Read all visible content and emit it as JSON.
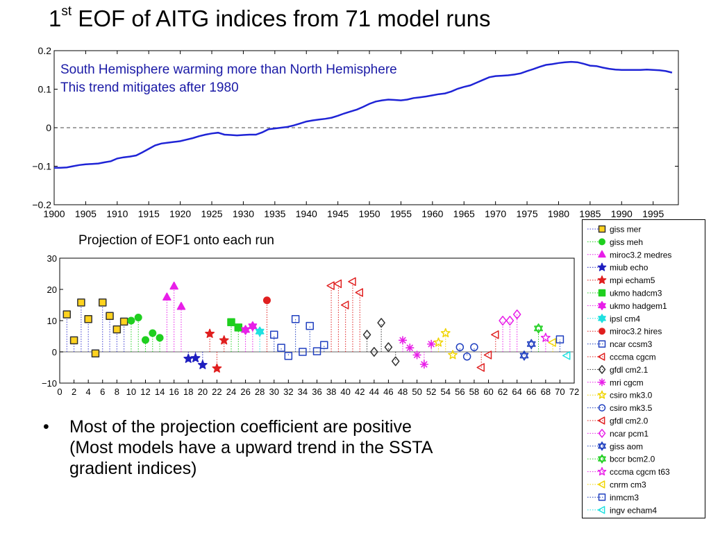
{
  "title": {
    "prefix": "1",
    "superscript": "st",
    "rest": " EOF of AITG indices from 71 model runs"
  },
  "top_annotation": [
    "South Hemisphere warming more than North Hemisphere",
    "This trend mitigates after 1980"
  ],
  "bottom_title": "Projection of EOF1 onto each run",
  "bullet": {
    "mark": "•",
    "line1": "Most of the projection coefficient are positive",
    "line2": "(Most models have a upward trend in the SSTA",
    "line3": "gradient indices)"
  },
  "colors": {
    "eof_line": "#1f24d6",
    "annotation": "#1a1aa6"
  },
  "chart_data": [
    {
      "type": "line",
      "title": "",
      "xlabel": "",
      "ylabel": "",
      "xlim": [
        1900,
        1999
      ],
      "ylim": [
        -0.2,
        0.2
      ],
      "x_ticks": [
        1900,
        1905,
        1910,
        1915,
        1920,
        1925,
        1930,
        1935,
        1940,
        1945,
        1950,
        1955,
        1960,
        1965,
        1970,
        1975,
        1980,
        1985,
        1990,
        1995
      ],
      "y_ticks": [
        0.2,
        0.1,
        0,
        -0.1,
        -0.2
      ],
      "y_tick_labels": [
        "0.2",
        "0.1",
        "0",
        "−0.1",
        "−0.2"
      ],
      "reference_line": 0,
      "series": [
        {
          "x": [
            1900,
            1901,
            1902,
            1903,
            1904,
            1905,
            1906,
            1907,
            1908,
            1909,
            1910,
            1911,
            1912,
            1913,
            1914,
            1915,
            1916,
            1917,
            1918,
            1919,
            1920,
            1921,
            1922,
            1923,
            1924,
            1925,
            1926,
            1927,
            1928,
            1929,
            1930,
            1931,
            1932,
            1933,
            1934,
            1935,
            1936,
            1937,
            1938,
            1939,
            1940,
            1941,
            1942,
            1943,
            1944,
            1945,
            1946,
            1947,
            1948,
            1949,
            1950,
            1951,
            1952,
            1953,
            1954,
            1955,
            1956,
            1957,
            1958,
            1959,
            1960,
            1961,
            1962,
            1963,
            1964,
            1965,
            1966,
            1967,
            1968,
            1969,
            1970,
            1971,
            1972,
            1973,
            1974,
            1975,
            1976,
            1977,
            1978,
            1979,
            1980,
            1981,
            1982,
            1983,
            1984,
            1985,
            1986,
            1987,
            1988,
            1989,
            1990,
            1991,
            1992,
            1993,
            1994,
            1995,
            1996,
            1997,
            1998
          ],
          "y": [
            -0.104,
            -0.104,
            -0.103,
            -0.1,
            -0.097,
            -0.095,
            -0.094,
            -0.093,
            -0.09,
            -0.087,
            -0.08,
            -0.077,
            -0.075,
            -0.072,
            -0.064,
            -0.055,
            -0.046,
            -0.041,
            -0.039,
            -0.037,
            -0.035,
            -0.031,
            -0.027,
            -0.022,
            -0.018,
            -0.015,
            -0.013,
            -0.018,
            -0.019,
            -0.02,
            -0.019,
            -0.018,
            -0.018,
            -0.012,
            -0.004,
            -0.002,
            0,
            0.002,
            0.006,
            0.011,
            0.016,
            0.019,
            0.021,
            0.023,
            0.026,
            0.031,
            0.037,
            0.042,
            0.047,
            0.054,
            0.062,
            0.068,
            0.071,
            0.073,
            0.072,
            0.071,
            0.073,
            0.077,
            0.079,
            0.081,
            0.084,
            0.087,
            0.089,
            0.094,
            0.101,
            0.106,
            0.11,
            0.117,
            0.124,
            0.131,
            0.134,
            0.135,
            0.136,
            0.138,
            0.141,
            0.147,
            0.152,
            0.158,
            0.163,
            0.165,
            0.168,
            0.17,
            0.171,
            0.17,
            0.166,
            0.161,
            0.16,
            0.156,
            0.153,
            0.151,
            0.15,
            0.15,
            0.15,
            0.15,
            0.151,
            0.15,
            0.149,
            0.147,
            0.143
          ]
        }
      ],
      "annotations": [
        "South Hemisphere warming more than North Hemisphere",
        "This trend mitigates after 1980"
      ]
    },
    {
      "type": "scatter",
      "title": "Projection of EOF1 onto each run",
      "xlabel": "",
      "ylabel": "",
      "xlim": [
        0,
        72
      ],
      "ylim": [
        -10,
        30
      ],
      "x_ticks": [
        0,
        2,
        4,
        6,
        8,
        10,
        12,
        14,
        16,
        18,
        20,
        22,
        24,
        26,
        28,
        30,
        32,
        34,
        36,
        38,
        40,
        42,
        44,
        46,
        48,
        50,
        52,
        54,
        56,
        58,
        60,
        62,
        64,
        66,
        68,
        70,
        72
      ],
      "x_tick_labels": [
        "0",
        "2",
        "4",
        "6",
        "8",
        "10",
        "12",
        "14",
        "16",
        "18",
        "20",
        "22",
        "24",
        "26",
        "28",
        "30",
        "32",
        "34",
        "36",
        "38",
        "40",
        "42",
        "44",
        "46",
        "48",
        "50",
        "52",
        "54",
        "56",
        "58",
        "60",
        "62",
        "64",
        "66",
        "68",
        "70",
        "72"
      ],
      "y_ticks": [
        30,
        20,
        10,
        0,
        -10
      ],
      "y_tick_labels": [
        "30",
        "20",
        "10",
        "0",
        "−10"
      ],
      "grid": false,
      "style": "stem",
      "legend_position": "outside-right",
      "series": [
        {
          "name": "giss mer",
          "marker": "square",
          "filled": true,
          "color": "#3a3ad0",
          "fill": "#ffd21f",
          "x": [
            1,
            2,
            3,
            4,
            5,
            6,
            7,
            8,
            9
          ],
          "y": [
            12,
            3.7,
            15.8,
            10.5,
            -0.5,
            15.8,
            11.5,
            7.2,
            9.7
          ]
        },
        {
          "name": "giss meh",
          "marker": "circle",
          "filled": true,
          "color": "#1fcf1f",
          "fill": "#1fcf1f",
          "x": [
            10,
            11,
            12,
            13,
            14
          ],
          "y": [
            10,
            11,
            3.8,
            6,
            4.5
          ]
        },
        {
          "name": "miroc3.2 medres",
          "marker": "triangle-up",
          "filled": true,
          "color": "#e81fe8",
          "fill": "#e81fe8",
          "x": [
            15,
            16,
            17
          ],
          "y": [
            17.5,
            21,
            14.5
          ]
        },
        {
          "name": "miub echo",
          "marker": "star5",
          "filled": true,
          "color": "#1f1fbf",
          "fill": "#1f1fbf",
          "x": [
            18,
            19,
            20
          ],
          "y": [
            -2.2,
            -2,
            -4.2
          ]
        },
        {
          "name": "mpi echam5",
          "marker": "star5",
          "filled": true,
          "color": "#e01f1f",
          "fill": "#e01f1f",
          "x": [
            21,
            22,
            23
          ],
          "y": [
            5.8,
            -5.3,
            3.7
          ]
        },
        {
          "name": "ukmo hadcm3",
          "marker": "square",
          "filled": true,
          "color": "#1fcf1f",
          "fill": "#1fcf1f",
          "x": [
            24,
            25
          ],
          "y": [
            9.5,
            7.8
          ]
        },
        {
          "name": "ukmo hadgem1",
          "marker": "star6",
          "filled": true,
          "color": "#e81fe8",
          "fill": "#e81fe8",
          "x": [
            26,
            27
          ],
          "y": [
            7,
            8.2
          ]
        },
        {
          "name": "ipsl cm4",
          "marker": "star6",
          "filled": true,
          "color": "#1fe0e0",
          "fill": "#1fe0e0",
          "x": [
            28
          ],
          "y": [
            6.5
          ]
        },
        {
          "name": "miroc3.2 hires",
          "marker": "circle",
          "filled": true,
          "color": "#e01f1f",
          "fill": "#e01f1f",
          "x": [
            29
          ],
          "y": [
            16.5
          ]
        },
        {
          "name": "ncar ccsm3",
          "marker": "square",
          "filled": false,
          "color": "#1f3fbf",
          "x": [
            30,
            31,
            32,
            33,
            34,
            35,
            36,
            37
          ],
          "y": [
            5.5,
            1.3,
            -1.3,
            10.5,
            0,
            8.3,
            0.2,
            2.2
          ]
        },
        {
          "name": "cccma cgcm",
          "marker": "triangle-left",
          "filled": false,
          "color": "#e01f1f",
          "x": [
            38,
            39,
            40,
            41,
            42
          ],
          "y": [
            21.2,
            21.8,
            15,
            22.5,
            19
          ]
        },
        {
          "name": "gfdl cm2.1",
          "marker": "diamond",
          "filled": false,
          "color": "#333333",
          "x": [
            43,
            44,
            45,
            46,
            47
          ],
          "y": [
            5.5,
            0,
            9.3,
            1.5,
            -3
          ]
        },
        {
          "name": "mri cgcm",
          "marker": "star-asterisk",
          "filled": false,
          "color": "#e81fe8",
          "x": [
            48,
            49,
            50,
            51,
            52
          ],
          "y": [
            3.7,
            1.3,
            -1,
            -4,
            2.5
          ]
        },
        {
          "name": "csiro mk3.0",
          "marker": "star5",
          "filled": false,
          "color": "#f0d400",
          "x": [
            53,
            54,
            55
          ],
          "y": [
            3,
            6,
            -1
          ]
        },
        {
          "name": "csiro mk3.5",
          "marker": "circle",
          "filled": false,
          "color": "#1f3fbf",
          "x": [
            56,
            57,
            58
          ],
          "y": [
            1.5,
            -1.5,
            1.5
          ]
        },
        {
          "name": "gfdl cm2.0",
          "marker": "triangle-left",
          "filled": false,
          "color": "#e01f1f",
          "x": [
            59,
            60,
            61
          ],
          "y": [
            -5,
            -1,
            5.5
          ]
        },
        {
          "name": "ncar pcm1",
          "marker": "diamond",
          "filled": false,
          "color": "#e81fe8",
          "x": [
            62,
            63,
            64
          ],
          "y": [
            10,
            10,
            12
          ]
        },
        {
          "name": "giss aom",
          "marker": "star6",
          "filled": false,
          "color": "#1f3fbf",
          "x": [
            65,
            66
          ],
          "y": [
            -1.2,
            2.5
          ]
        },
        {
          "name": "bccr bcm2.0",
          "marker": "star6",
          "filled": false,
          "color": "#1fcf1f",
          "x": [
            67
          ],
          "y": [
            7.5
          ]
        },
        {
          "name": "cccma cgcm t63",
          "marker": "star5",
          "filled": false,
          "color": "#e81fe8",
          "x": [
            68
          ],
          "y": [
            4.5
          ]
        },
        {
          "name": "cnrm cm3",
          "marker": "triangle-left",
          "filled": false,
          "color": "#f0d400",
          "x": [
            69
          ],
          "y": [
            3
          ]
        },
        {
          "name": "inmcm3",
          "marker": "square",
          "filled": false,
          "color": "#1f3fbf",
          "x": [
            70
          ],
          "y": [
            4
          ]
        },
        {
          "name": "ingv echam4",
          "marker": "triangle-left",
          "filled": false,
          "color": "#1fe0e0",
          "x": [
            71
          ],
          "y": [
            -1.2
          ]
        }
      ]
    }
  ]
}
